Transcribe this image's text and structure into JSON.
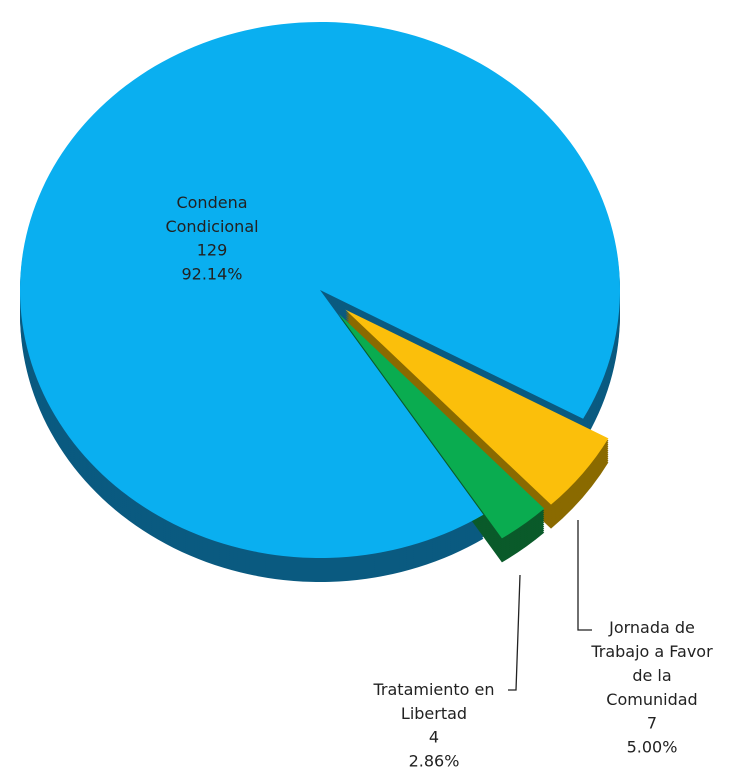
{
  "chart_data": {
    "type": "pie3d",
    "categories": [
      "Condena\nCondicional",
      "Jornada de\nTrabajo a Favor\nde la\nComunidad",
      "Tratamiento en\nLibertad"
    ],
    "values": [
      129,
      7,
      4
    ],
    "percent_labels": [
      "92.14%",
      "5.00%",
      "2.86%"
    ],
    "colors": [
      "#0aaff0",
      "#fbbf0b",
      "#0aac50"
    ],
    "side_colors": [
      "#0a5a80",
      "#8a6a00",
      "#0a5a2a"
    ]
  }
}
